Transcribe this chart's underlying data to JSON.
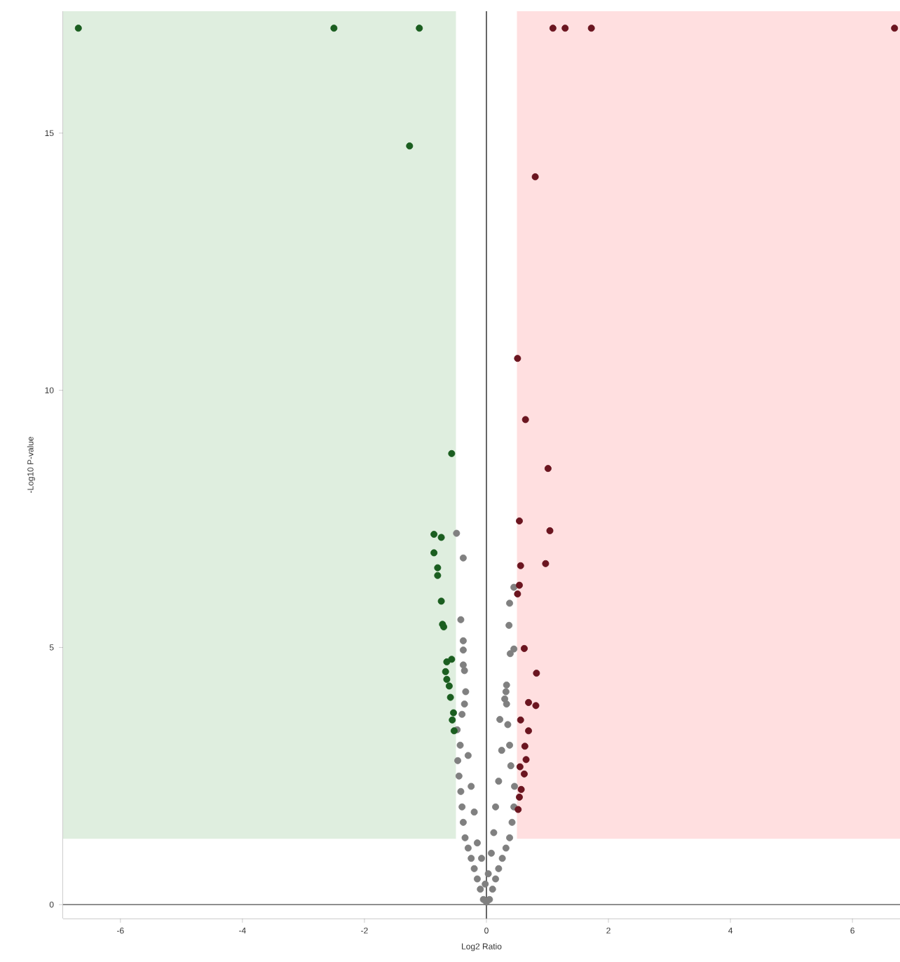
{
  "chart_data": {
    "type": "scatter",
    "xlabel": "Log2 Ratio",
    "ylabel": "-Log10 P-value",
    "xlim": [
      -6.94,
      6.78
    ],
    "ylim": [
      -0.27,
      17.37
    ],
    "xticks": [
      -6,
      -4,
      -2,
      0,
      2,
      4,
      6
    ],
    "yticks": [
      0,
      5,
      10,
      15
    ],
    "marker": "circle",
    "grid": false,
    "bands": [
      {
        "axis": "x",
        "from": -6.94,
        "to": -0.5,
        "color": "#dfeedf"
      },
      {
        "axis": "x",
        "from": 0.5,
        "to": 6.78,
        "color": "#ffdfe0"
      },
      {
        "axis": "y",
        "from": -0.27,
        "to": 1.28,
        "color": "#ffffff"
      }
    ],
    "ref_lines": [
      {
        "axis": "x",
        "value": 0,
        "color": "#000000"
      },
      {
        "axis": "y",
        "value": 0,
        "color": "#4d4d4d"
      }
    ],
    "series": [
      {
        "color": "#808080",
        "x": [
          -0.05,
          -0.1,
          -0.15,
          -0.2,
          -0.25,
          -0.3,
          -0.35,
          -0.38,
          -0.4,
          -0.42,
          -0.45,
          -0.47,
          -0.43,
          -0.48,
          -0.4,
          -0.36,
          -0.34,
          -0.36,
          -0.38,
          -0.38,
          -0.38,
          -0.42,
          -0.38,
          -0.49,
          0,
          -0.02,
          0.03,
          -0.08,
          0.08,
          -0.15,
          0.12,
          -0.2,
          0.15,
          -0.25,
          0.2,
          -0.3,
          0.25,
          0.22,
          0.3,
          0.05,
          0.1,
          0.15,
          0.2,
          0.26,
          0.32,
          0.38,
          0.42,
          0.45,
          0.46,
          0.4,
          0.38,
          0.35,
          0.33,
          0.32,
          0.33,
          0.39,
          0.45,
          0.37,
          0.38,
          0.45
        ],
        "values": [
          0.1,
          0.3,
          0.5,
          0.7,
          0.9,
          1.1,
          1.3,
          1.6,
          1.9,
          2.2,
          2.5,
          2.8,
          3.1,
          3.4,
          3.7,
          3.9,
          4.14,
          4.55,
          4.66,
          4.95,
          5.13,
          5.54,
          6.74,
          7.22,
          0.05,
          0.4,
          0.6,
          0.9,
          1.0,
          1.2,
          1.4,
          1.8,
          1.9,
          2.3,
          2.4,
          2.9,
          3.0,
          3.6,
          4.0,
          0.1,
          0.3,
          0.5,
          0.7,
          0.9,
          1.1,
          1.3,
          1.6,
          1.9,
          2.3,
          2.7,
          3.1,
          3.5,
          3.9,
          4.14,
          4.27,
          4.88,
          4.97,
          5.43,
          5.86,
          6.17
        ]
      },
      {
        "color": "#1b5e20",
        "x": [
          -6.69,
          -2.5,
          -1.1,
          -1.26,
          -0.57,
          -0.86,
          -0.74,
          -0.86,
          -0.8,
          -0.8,
          -0.74,
          -0.72,
          -0.7,
          -0.57,
          -0.65,
          -0.67,
          -0.65,
          -0.61,
          -0.59,
          -0.54,
          -0.56,
          -0.53
        ],
        "values": [
          17.04,
          17.04,
          17.04,
          14.75,
          8.77,
          7.2,
          7.14,
          6.84,
          6.55,
          6.4,
          5.9,
          5.45,
          5.4,
          4.77,
          4.72,
          4.53,
          4.38,
          4.25,
          4.03,
          3.73,
          3.59,
          3.38
        ]
      },
      {
        "color": "#6b1520",
        "x": [
          1.09,
          1.29,
          1.72,
          6.69,
          0.8,
          0.51,
          0.64,
          1.01,
          0.54,
          1.04,
          0.56,
          0.97,
          0.54,
          0.51,
          0.62,
          0.82,
          0.69,
          0.81,
          0.56,
          0.69,
          0.63,
          0.65,
          0.55,
          0.62,
          0.57,
          0.54,
          0.52
        ],
        "values": [
          17.04,
          17.04,
          17.04,
          17.04,
          14.15,
          10.62,
          9.43,
          8.48,
          7.46,
          7.27,
          6.59,
          6.63,
          6.21,
          6.04,
          4.98,
          4.5,
          3.93,
          3.87,
          3.59,
          3.38,
          3.08,
          2.82,
          2.68,
          2.54,
          2.24,
          2.09,
          1.85
        ]
      }
    ]
  }
}
